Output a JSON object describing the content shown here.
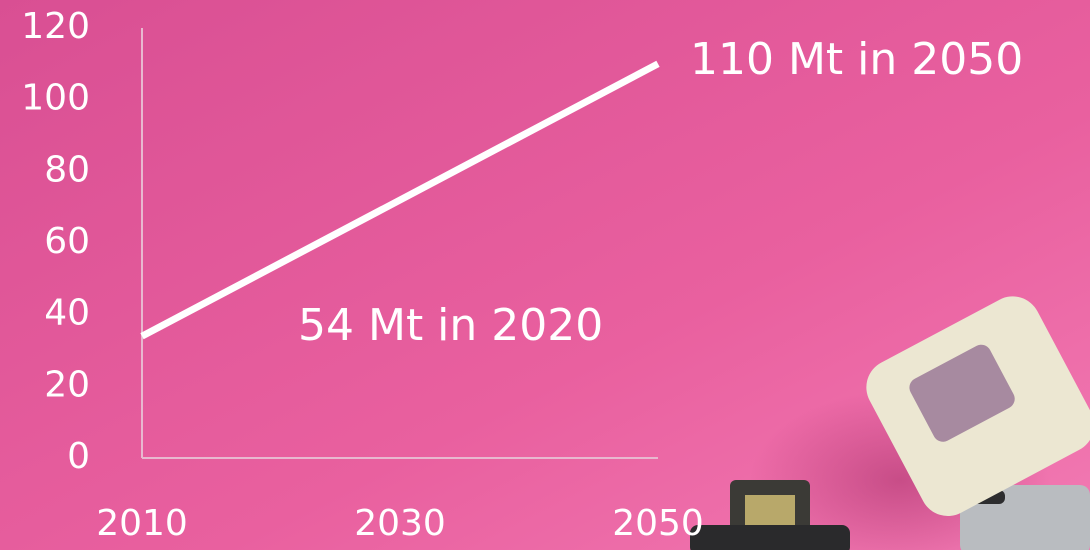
{
  "chart_data": {
    "type": "line",
    "x": [
      2010,
      2050
    ],
    "series": [
      {
        "color": "#ffffff",
        "values": [
          34,
          110
        ]
      }
    ],
    "xlim": [
      2010,
      2050
    ],
    "xticks": [
      2010,
      2030,
      2050
    ],
    "ylim": [
      0,
      120
    ],
    "yticks": [
      0,
      20,
      40,
      60,
      80,
      100,
      120
    ],
    "annotations": [
      "110 Mt in 2050",
      "54 Mt in 2020"
    ]
  }
}
